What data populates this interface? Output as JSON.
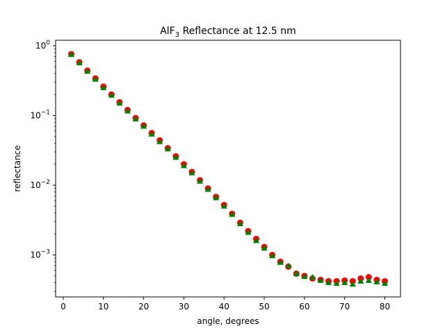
{
  "chart_data": {
    "type": "scatter",
    "title": {
      "prefix": "AlF",
      "subscript": "3",
      "suffix": " Reflectance at 12.5 nm"
    },
    "xlabel": "angle, degrees",
    "ylabel": "reflectance",
    "xlim": [
      -1.9,
      83.9
    ],
    "ylim": [
      0.00025,
      1.2
    ],
    "yscale": "log",
    "grid": false,
    "x_ticks": [
      0,
      10,
      20,
      30,
      40,
      50,
      60,
      70,
      80
    ],
    "y_ticks": [
      {
        "value": 0.001,
        "base": "10",
        "exponent": "−3"
      },
      {
        "value": 0.01,
        "base": "10",
        "exponent": "−2"
      },
      {
        "value": 0.1,
        "base": "10",
        "exponent": "−1"
      },
      {
        "value": 1,
        "base": "10",
        "exponent": "0"
      }
    ],
    "series": [
      {
        "marker": "circle",
        "color": "#ff0000",
        "x": [
          2,
          4,
          6,
          8,
          10,
          12,
          14,
          16,
          18,
          20,
          22,
          24,
          26,
          28,
          30,
          32,
          34,
          36,
          38,
          40,
          42,
          44,
          46,
          48,
          50,
          52,
          54,
          56,
          58,
          60,
          62,
          64,
          66,
          68,
          70,
          72,
          74,
          76,
          78,
          80
        ],
        "values": [
          0.76,
          0.58,
          0.44,
          0.34,
          0.26,
          0.2,
          0.155,
          0.12,
          0.092,
          0.072,
          0.056,
          0.044,
          0.034,
          0.026,
          0.02,
          0.0155,
          0.0118,
          0.009,
          0.0068,
          0.0052,
          0.0039,
          0.0029,
          0.0022,
          0.0017,
          0.0013,
          0.001,
          0.0008,
          0.00068,
          0.00054,
          0.0005,
          0.00046,
          0.00044,
          0.00042,
          0.00042,
          0.00043,
          0.00042,
          0.00046,
          0.00048,
          0.00044,
          0.00042
        ]
      },
      {
        "marker": "triangle",
        "color": "#008000",
        "x": [
          2,
          4,
          6,
          8,
          10,
          12,
          14,
          16,
          18,
          20,
          22,
          24,
          26,
          28,
          30,
          32,
          34,
          36,
          38,
          40,
          42,
          44,
          46,
          48,
          50,
          52,
          54,
          56,
          58,
          60,
          62,
          64,
          66,
          68,
          70,
          72,
          74,
          76,
          78,
          80
        ],
        "values": [
          0.75,
          0.57,
          0.43,
          0.33,
          0.25,
          0.195,
          0.15,
          0.116,
          0.089,
          0.07,
          0.054,
          0.042,
          0.033,
          0.025,
          0.019,
          0.015,
          0.0114,
          0.0087,
          0.0066,
          0.005,
          0.0038,
          0.0028,
          0.0021,
          0.0016,
          0.00125,
          0.00097,
          0.00078,
          0.0007,
          0.00054,
          0.00049,
          0.00048,
          0.00043,
          0.0004,
          0.00039,
          0.0004,
          0.00038,
          0.00042,
          0.00043,
          0.00041,
          0.00039
        ]
      }
    ]
  }
}
